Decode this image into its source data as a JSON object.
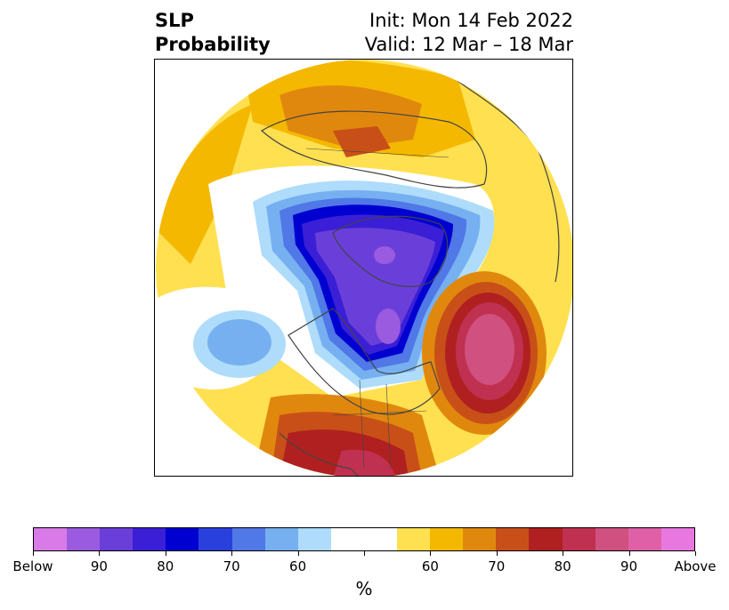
{
  "header": {
    "title_line1": "SLP",
    "title_line2": "Probability",
    "init": "Init: Mon 14 Feb 2022",
    "valid": "Valid: 12 Mar – 18 Mar"
  },
  "colorbar": {
    "colors": [
      "#d97ae8",
      "#9a5be0",
      "#6a3fd9",
      "#3a1fd6",
      "#0000d0",
      "#2a40dc",
      "#5078e6",
      "#76b0f0",
      "#aedcfa",
      "#ffffff",
      "#ffffff",
      "#ffe050",
      "#f4b800",
      "#e0880e",
      "#c85018",
      "#b02020",
      "#c03050",
      "#d05080",
      "#e060a8",
      "#e878e0"
    ],
    "labels": [
      "Below",
      "90",
      "80",
      "70",
      "60",
      "",
      "60",
      "70",
      "80",
      "90",
      "Above"
    ],
    "unit": "%"
  },
  "map": {
    "land_lines_color": "#444444",
    "below_colors": [
      "#aedcfa",
      "#76b0f0",
      "#5078e6",
      "#2a40dc",
      "#0000d0",
      "#3a1fd6",
      "#6a3fd9",
      "#9a5be0"
    ],
    "above_colors": [
      "#ffe050",
      "#f4b800",
      "#e0880e",
      "#c85018",
      "#b02020",
      "#c03050",
      "#d05080"
    ]
  }
}
